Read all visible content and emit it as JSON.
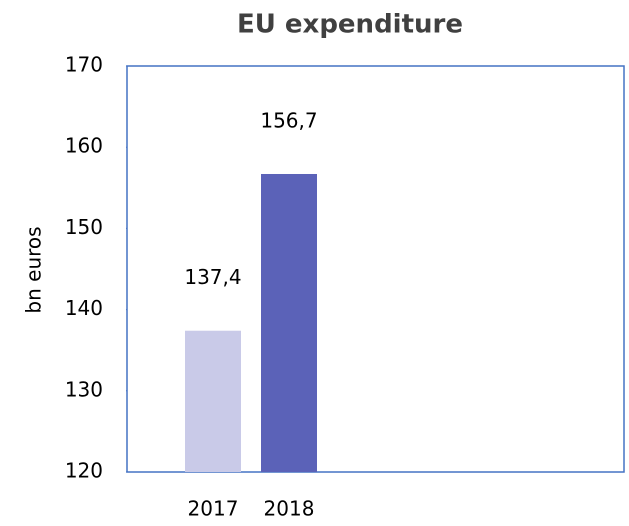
{
  "chart_data": {
    "type": "bar",
    "title": "EU expenditure",
    "y_label": "bn euros",
    "categories": [
      "2017",
      "2018"
    ],
    "values": [
      137.4,
      156.7
    ],
    "value_labels": [
      "137,4",
      "156,7"
    ],
    "colors": [
      "#c9cae8",
      "#5b62b8"
    ],
    "ylim": [
      120,
      170
    ],
    "yticks": [
      120,
      130,
      140,
      150,
      160,
      170
    ],
    "grid": false
  }
}
